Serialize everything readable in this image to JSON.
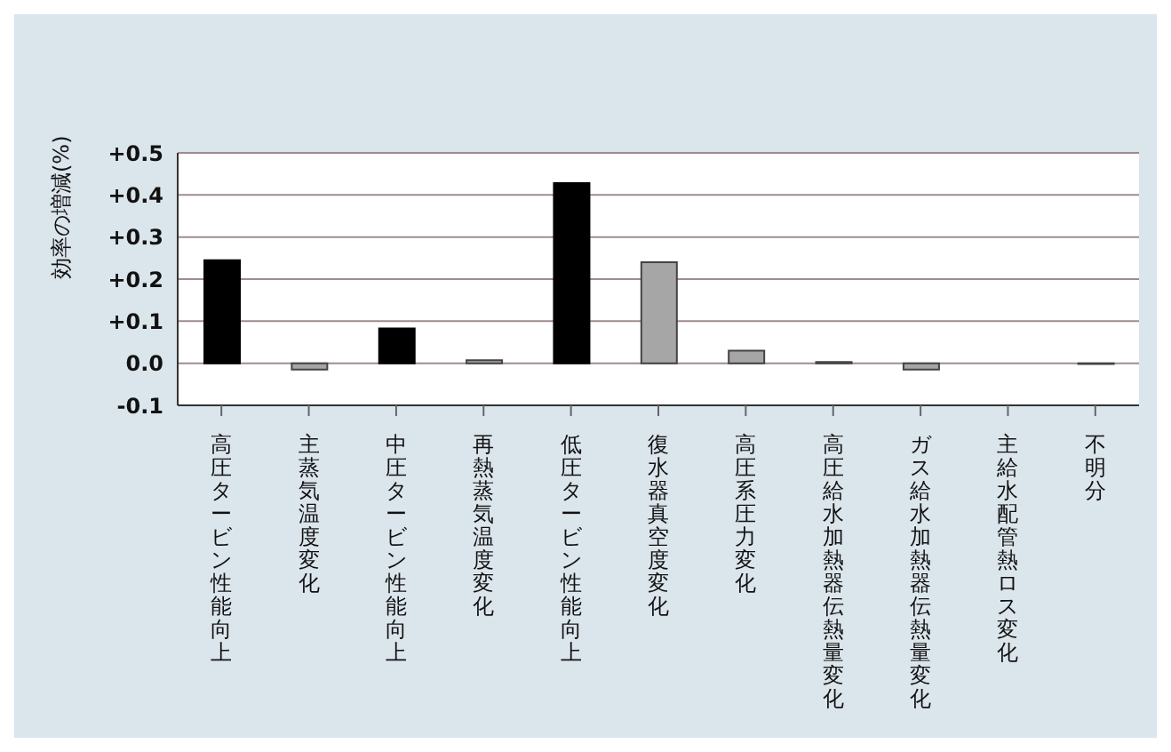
{
  "chart_data": {
    "type": "bar",
    "ylabel": "効率の増減(%)",
    "categories": [
      "高圧タービン性能向上",
      "主蒸気温度変化",
      "中圧タービン性能向上",
      "再熱蒸気温度変化",
      "低圧タービン性能向上",
      "復水器真空度変化",
      "高圧系圧力変化",
      "高圧給水加熱器伝熱量変化",
      "ガス給水加熱器伝熱量変化",
      "主給水配管熱ロス変化",
      "不明分"
    ],
    "values": [
      0.245,
      -0.015,
      0.083,
      0.007,
      0.428,
      0.24,
      0.03,
      0.003,
      -0.015,
      0,
      -0.002
    ],
    "colors": [
      "#000000",
      "#a6a6a6",
      "#000000",
      "#a6a6a6",
      "#000000",
      "#a6a6a6",
      "#a6a6a6",
      "#a6a6a6",
      "#a6a6a6",
      "#a6a6a6",
      "#a6a6a6"
    ],
    "ylim": [
      -0.1,
      0.5
    ],
    "yticks": [
      {
        "value": -0.1,
        "label": "-0.1"
      },
      {
        "value": 0,
        "label": "0.0"
      },
      {
        "value": 0.1,
        "label": "+0.1"
      },
      {
        "value": 0.2,
        "label": "+0.2"
      },
      {
        "value": 0.3,
        "label": "+0.3"
      },
      {
        "value": 0.4,
        "label": "+0.4"
      },
      {
        "value": 0.5,
        "label": "+0.5"
      }
    ],
    "grid": "y",
    "legend": false
  }
}
